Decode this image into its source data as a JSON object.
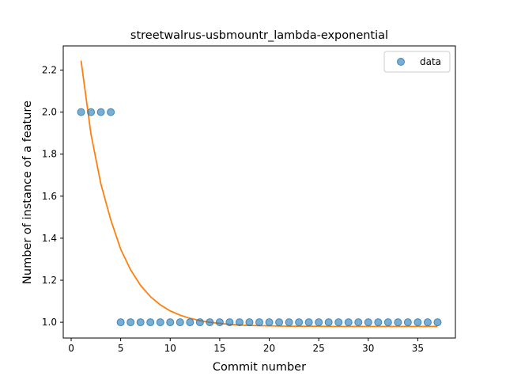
{
  "chart_data": {
    "type": "scatter",
    "title": "streetwalrus-usbmountr_lambda-exponential",
    "xlabel": "Commit number",
    "ylabel": "Number of instance of a feature",
    "xlim": [
      -0.8,
      38.8
    ],
    "ylim": [
      0.925,
      2.315
    ],
    "xticks": [
      0,
      5,
      10,
      15,
      20,
      25,
      30,
      35
    ],
    "yticks": [
      1.0,
      1.2,
      1.4,
      1.6,
      1.8,
      2.0,
      2.2
    ],
    "ytick_labels": [
      "1.0",
      "1.2",
      "1.4",
      "1.6",
      "1.8",
      "2.0",
      "2.2"
    ],
    "grid": false,
    "legend_position": "top-right",
    "series": [
      {
        "name": "data",
        "kind": "scatter",
        "color": "#1f77b4",
        "x": [
          1,
          2,
          3,
          4,
          5,
          6,
          7,
          8,
          9,
          10,
          11,
          12,
          13,
          14,
          15,
          16,
          17,
          18,
          19,
          20,
          21,
          22,
          23,
          24,
          25,
          26,
          27,
          28,
          29,
          30,
          31,
          32,
          33,
          34,
          35,
          36,
          37
        ],
        "y": [
          2,
          2,
          2,
          2,
          1,
          1,
          1,
          1,
          1,
          1,
          1,
          1,
          1,
          1,
          1,
          1,
          1,
          1,
          1,
          1,
          1,
          1,
          1,
          1,
          1,
          1,
          1,
          1,
          1,
          1,
          1,
          1,
          1,
          1,
          1,
          1,
          1
        ]
      },
      {
        "kind": "line",
        "color": "#ff7f0e",
        "x": [
          1,
          2,
          3,
          4,
          5,
          6,
          7,
          8,
          9,
          10,
          11,
          12,
          13,
          14,
          15,
          16,
          17,
          18,
          19,
          20,
          21,
          22,
          23,
          24,
          25,
          26,
          27,
          28,
          29,
          30,
          31,
          32,
          33,
          34,
          35,
          36,
          37
        ],
        "y": [
          2.245,
          1.895,
          1.658,
          1.487,
          1.348,
          1.25,
          1.176,
          1.122,
          1.083,
          1.054,
          1.034,
          1.019,
          1.008,
          1.0,
          0.995,
          0.99,
          0.987,
          0.985,
          0.984,
          0.983,
          0.982,
          0.981,
          0.981,
          0.981,
          0.981,
          0.98,
          0.98,
          0.98,
          0.98,
          0.98,
          0.98,
          0.98,
          0.98,
          0.98,
          0.98,
          0.98,
          0.98
        ]
      }
    ]
  }
}
